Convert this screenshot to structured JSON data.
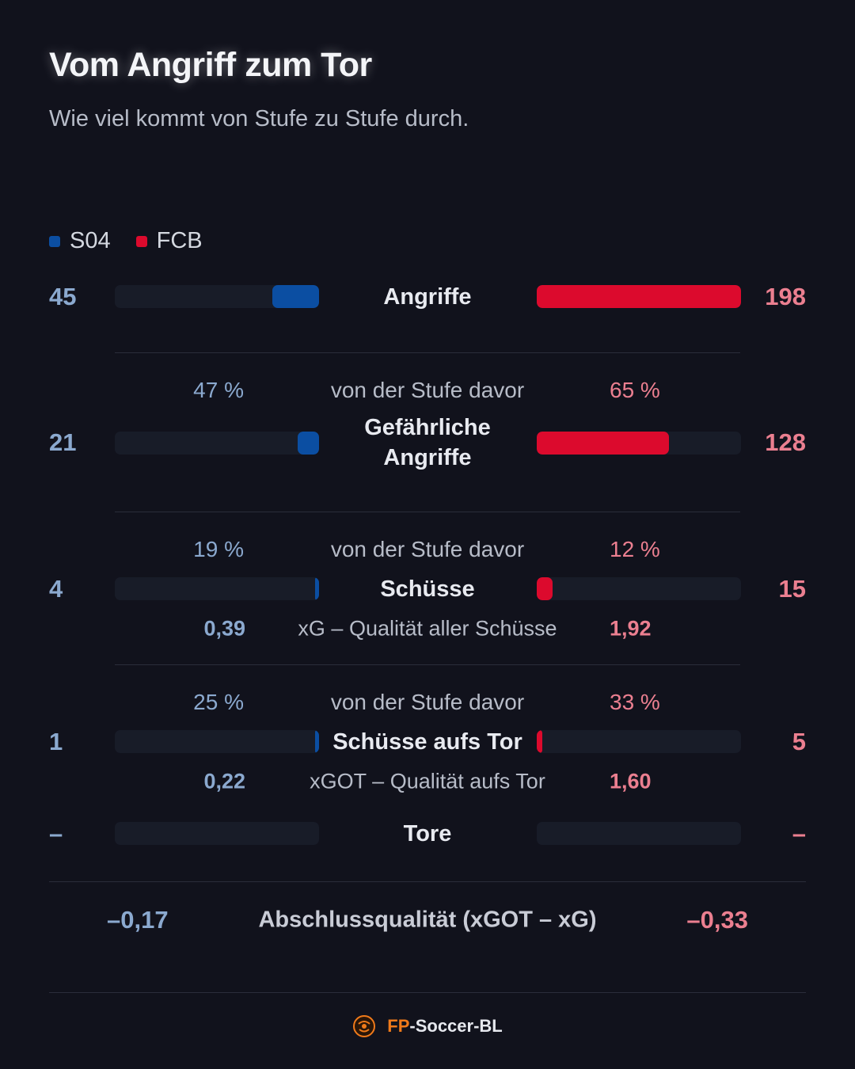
{
  "title": "Vom Angriff zum Tor",
  "subtitle": "Wie viel kommt von Stufe zu Stufe durch.",
  "colors": {
    "s04": "#0b4ea2",
    "fcb": "#dc0a2d",
    "s04_text": "#8ba9cf",
    "fcb_text": "#eb7f90",
    "background": "#11121c"
  },
  "legend": [
    {
      "name": "S04"
    },
    {
      "name": "FCB"
    }
  ],
  "chart_data": {
    "type": "bar",
    "series": [
      {
        "name": "S04",
        "values": [
          45,
          21,
          4,
          1,
          0
        ]
      },
      {
        "name": "FCB",
        "values": [
          198,
          128,
          15,
          5,
          0
        ]
      }
    ],
    "scale_max": 198,
    "stages": [
      {
        "label": "Angriffe",
        "s04": "45",
        "fcb": "198"
      },
      {
        "label": "Gefährliche Angriffe",
        "s04": "21",
        "fcb": "128",
        "conv_label": "von der Stufe davor",
        "s04_conv": "47 %",
        "fcb_conv": "65 %"
      },
      {
        "label": "Schüsse",
        "s04": "4",
        "fcb": "15",
        "conv_label": "von der Stufe davor",
        "s04_conv": "19 %",
        "fcb_conv": "12 %",
        "xlabel": "xG – Qualität aller Schüsse",
        "s04_x": "0,39",
        "fcb_x": "1,92"
      },
      {
        "label": "Schüsse aufs Tor",
        "s04": "1",
        "fcb": "5",
        "conv_label": "von der Stufe davor",
        "s04_conv": "25 %",
        "fcb_conv": "33 %",
        "xlabel": "xGOT – Qualität aufs Tor",
        "s04_x": "0,22",
        "fcb_x": "1,60"
      },
      {
        "label": "Tore",
        "s04": "–",
        "fcb": "–"
      }
    ]
  },
  "summary": {
    "label": "Abschlussqualität (xGOT – xG)",
    "s04": "–0,17",
    "fcb": "–0,33"
  },
  "footer": {
    "brand_prefix": "FP",
    "brand_rest": "-Soccer-BL",
    "logo_icon": "soccer-ball-logo-icon"
  }
}
